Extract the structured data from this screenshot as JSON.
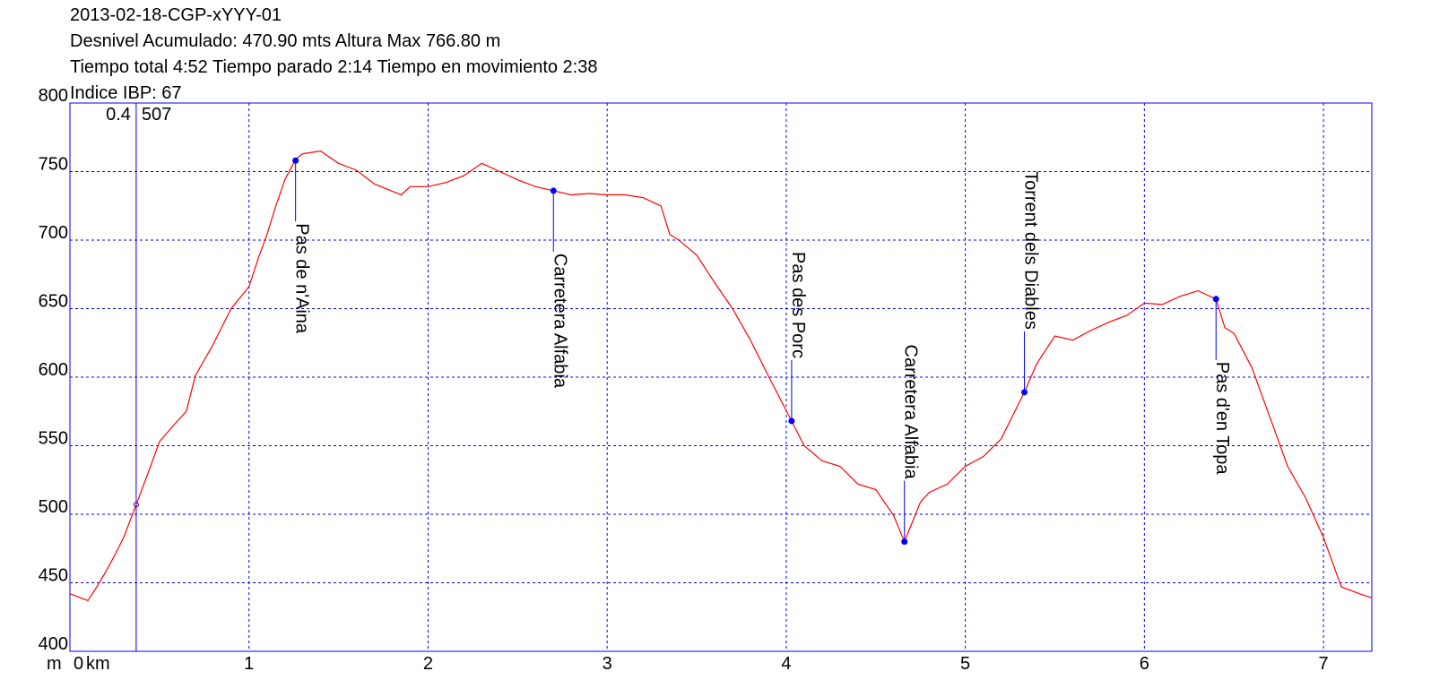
{
  "chart_data": {
    "type": "line",
    "title_lines": [
      "2013-02-18-CGP-xYYY-01",
      "Desnivel Acumulado: 470.90 mts  Altura Max 766.80 m",
      "Tiempo total 4:52 Tiempo parado 2:14 Tiempo en movimiento 2:38",
      "Indice IBP: 67"
    ],
    "y_unit": "m",
    "x_unit": "km",
    "xlim": [
      0,
      7.27
    ],
    "ylim": [
      400,
      800
    ],
    "xticks": [
      0,
      1,
      2,
      3,
      4,
      5,
      6,
      7
    ],
    "yticks": [
      400,
      450,
      500,
      550,
      600,
      650,
      700,
      750,
      800
    ],
    "grid": true,
    "frame_color": "#0000ff",
    "x": [
      0,
      0.1,
      0.15,
      0.2,
      0.25,
      0.3,
      0.37,
      0.45,
      0.5,
      0.6,
      0.65,
      0.7,
      0.8,
      0.9,
      1.0,
      1.05,
      1.1,
      1.15,
      1.2,
      1.26,
      1.3,
      1.4,
      1.5,
      1.6,
      1.7,
      1.85,
      1.9,
      2.0,
      2.1,
      2.2,
      2.3,
      2.4,
      2.5,
      2.6,
      2.7,
      2.8,
      2.9,
      3.0,
      3.1,
      3.2,
      3.3,
      3.35,
      3.4,
      3.5,
      3.6,
      3.7,
      3.8,
      3.9,
      4.03,
      4.1,
      4.2,
      4.3,
      4.4,
      4.5,
      4.6,
      4.66,
      4.75,
      4.8,
      4.9,
      5.0,
      5.1,
      5.2,
      5.33,
      5.4,
      5.5,
      5.6,
      5.7,
      5.8,
      5.9,
      6.0,
      6.1,
      6.2,
      6.3,
      6.4,
      6.45,
      6.5,
      6.6,
      6.7,
      6.8,
      6.9,
      7.0,
      7.1,
      7.2,
      7.27
    ],
    "series": [
      {
        "color": "#ff0000",
        "values": [
          442,
          437,
          447,
          458,
          470,
          483,
          507,
          535,
          553,
          568,
          575,
          601,
          624,
          650,
          666,
          686,
          704,
          725,
          744,
          759,
          763,
          765,
          756,
          751,
          741,
          733,
          739,
          739,
          742,
          747,
          756,
          750,
          744,
          739,
          736,
          733,
          734,
          733,
          733,
          731,
          725,
          704,
          700,
          689,
          669,
          650,
          627,
          601,
          568,
          550,
          539,
          535,
          522,
          518,
          499,
          480,
          509,
          516,
          522,
          535,
          542,
          555,
          589,
          610,
          630,
          627,
          634,
          640,
          645,
          654,
          653,
          659,
          663,
          657,
          636,
          632,
          607,
          571,
          535,
          512,
          483,
          447,
          442,
          439
        ]
      }
    ],
    "waypoints": [
      {
        "label": "Pas de n'Aina",
        "x": 1.26,
        "value": 758
      },
      {
        "label": "Carretera Alfabia",
        "x": 2.7,
        "value": 736
      },
      {
        "label": "Pas des Porc",
        "x": 4.03,
        "value": 568
      },
      {
        "label": "Carretera Alfabia",
        "x": 4.66,
        "value": 480
      },
      {
        "label": "Torrent dels Diables",
        "x": 5.33,
        "value": 589
      },
      {
        "label": "Pas d'en Topa",
        "x": 6.4,
        "value": 657
      }
    ],
    "cursor": {
      "x": {
        "value": 0.37,
        "label": "0.4"
      },
      "value": 507
    }
  }
}
